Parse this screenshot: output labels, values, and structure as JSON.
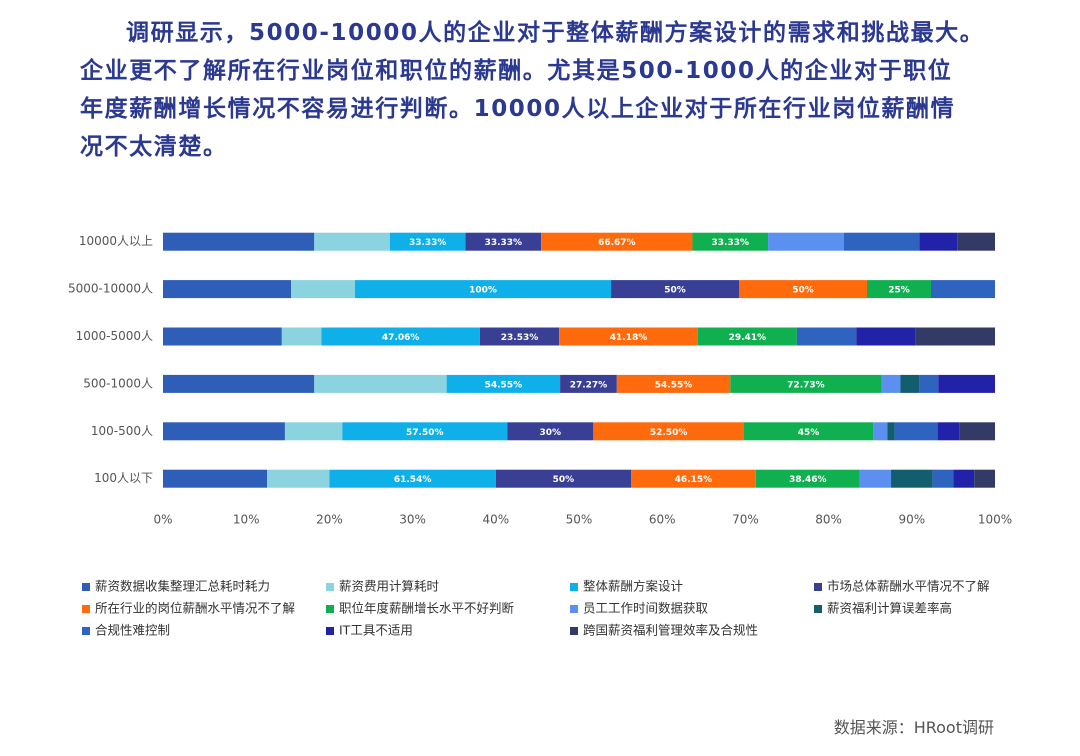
{
  "intro_lines": [
    "调研显示，5000-10000人的企业对于整体薪酬方案设计的需求和挑战最大。",
    "企业更不了解所在行业岗位和职位的薪酬。尤其是500-1000人的企业对于职位",
    "年度薪酬增长情况不容易进行判断。10000人以上企业对于所在行业岗位薪酬情",
    "况不太清楚。"
  ],
  "source": "数据来源：HRoot调研",
  "chart_data": {
    "type": "bar",
    "orientation": "horizontal",
    "stacked_percent": true,
    "categories": [
      "10000人以上",
      "5000-10000人",
      "1000-5000人",
      "500-1000人",
      "100-500人",
      "100人以下"
    ],
    "xlim": [
      0,
      100
    ],
    "xticks": [
      {
        "value": 0,
        "label": "0%"
      },
      {
        "value": 10,
        "label": "10%"
      },
      {
        "value": 20,
        "label": "20%"
      },
      {
        "value": 30,
        "label": "30%"
      },
      {
        "value": 40,
        "label": "40%"
      },
      {
        "value": 50,
        "label": "50%"
      },
      {
        "value": 60,
        "label": "60%"
      },
      {
        "value": 70,
        "label": "70%"
      },
      {
        "value": 80,
        "label": "80%"
      },
      {
        "value": 90,
        "label": "90%"
      },
      {
        "value": 100,
        "label": "100%"
      }
    ],
    "series": [
      {
        "name": "薪资数据收集整理汇总耗时耗力",
        "color": "#2e5eb8",
        "values": [
          66.67,
          50,
          35.29,
          72.73,
          42.5,
          38.46
        ]
      },
      {
        "name": "薪资费用计算耗时",
        "color": "#8ad3df",
        "values": [
          33.33,
          25,
          11.76,
          63.64,
          20,
          23.08
        ]
      },
      {
        "name": "整体薪酬方案设计",
        "color": "#0fb0ea",
        "values": [
          33.33,
          100,
          47.06,
          54.55,
          57.5,
          61.54
        ],
        "value_labels": [
          "33.33%",
          "100%",
          "47.06%",
          "54.55%",
          "57.50%",
          "61.54%"
        ]
      },
      {
        "name": "市场总体薪酬水平情况不了解",
        "color": "#3a3f96",
        "values": [
          33.33,
          50,
          23.53,
          27.27,
          30,
          50
        ],
        "value_labels": [
          "33.33%",
          "50%",
          "23.53%",
          "27.27%",
          "30%",
          "50%"
        ]
      },
      {
        "name": "所在行业的岗位薪酬水平情况不了解",
        "color": "#ff6a0d",
        "values": [
          66.67,
          50,
          41.18,
          54.55,
          52.5,
          46.15
        ],
        "value_labels": [
          "66.67%",
          "50%",
          "41.18%",
          "54.55%",
          "52.50%",
          "46.15%"
        ]
      },
      {
        "name": "职位年度薪酬增长水平不好判断",
        "color": "#10b050",
        "values": [
          33.33,
          25,
          29.41,
          72.73,
          45,
          38.46
        ],
        "value_labels": [
          "33.33%",
          "25%",
          "29.41%",
          "72.73%",
          "45%",
          "38.46%"
        ]
      },
      {
        "name": "员工工作时间数据获取",
        "color": "#5b8ff0",
        "values": [
          33.33,
          null,
          null,
          9.09,
          5,
          11.54
        ]
      },
      {
        "name": "薪资福利计算误差率高",
        "color": "#125e6e",
        "values": [
          null,
          null,
          null,
          9.09,
          2.5,
          15.38
        ]
      },
      {
        "name": "合规性难控制",
        "color": "#2e63c0",
        "values": [
          33.33,
          25,
          17.65,
          9.09,
          15,
          7.69
        ]
      },
      {
        "name": "IT工具不适用",
        "color": "#2222a8",
        "values": [
          16.67,
          null,
          17.65,
          27.27,
          7.5,
          7.69
        ]
      },
      {
        "name": "跨国薪资福利管理效率及合规性",
        "color": "#333a66",
        "values": [
          16.67,
          null,
          23.53,
          null,
          12.5,
          7.69
        ]
      }
    ]
  }
}
